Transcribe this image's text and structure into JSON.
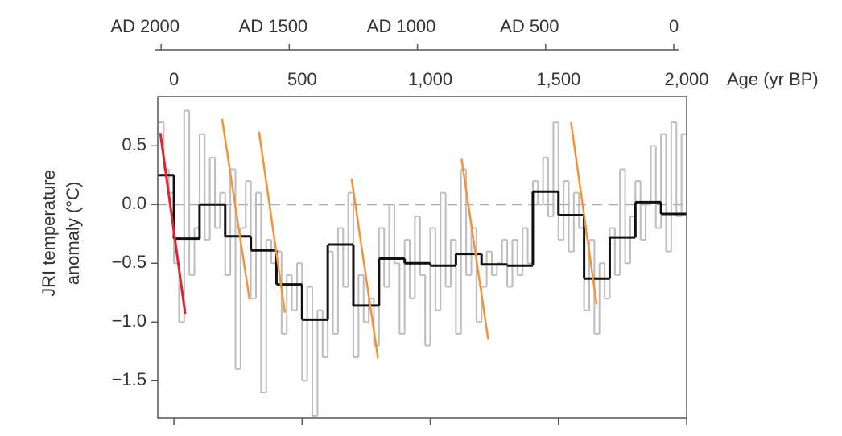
{
  "chart_data": {
    "type": "line",
    "ylabel": [
      "JRI temperature",
      "anomaly (°C)"
    ],
    "xlabel": "Age (yr BP)",
    "xlim": [
      -63,
      2000
    ],
    "xticks": [
      0,
      500,
      {
        "value": 1000,
        "label": "1,000"
      },
      {
        "value": 1500,
        "label": "1,500"
      },
      {
        "value": 2000,
        "label": "2,000"
      }
    ],
    "x2lim": [
      2013,
      -50
    ],
    "x2ticks": [
      {
        "value": 2000,
        "label": "AD 2000"
      },
      {
        "value": 1500,
        "label": "AD 1500"
      },
      {
        "value": 1000,
        "label": "AD 1000"
      },
      {
        "value": 500,
        "label": "AD 500"
      },
      0
    ],
    "ylim": [
      -1.82,
      0.92
    ],
    "yticks": [
      0.5,
      {
        "value": 0,
        "label": "0.0"
      },
      {
        "value": -0.5,
        "label": "−0.5"
      },
      {
        "value": -1,
        "label": "−1.0"
      },
      {
        "value": -1.5,
        "label": "−1.5"
      }
    ],
    "reference_line": 0,
    "series": [
      {
        "style": "step",
        "color": "#bdbdbd",
        "width": 2,
        "x": [
          -60,
          -40,
          -20,
          0,
          20,
          40,
          60,
          80,
          100,
          120,
          140,
          160,
          180,
          200,
          220,
          240,
          260,
          280,
          300,
          320,
          340,
          360,
          380,
          400,
          420,
          440,
          460,
          480,
          500,
          520,
          540,
          560,
          580,
          600,
          620,
          640,
          660,
          680,
          700,
          720,
          740,
          760,
          780,
          800,
          820,
          840,
          860,
          880,
          900,
          920,
          940,
          960,
          980,
          1000,
          1020,
          1040,
          1060,
          1080,
          1100,
          1120,
          1140,
          1160,
          1180,
          1200,
          1220,
          1240,
          1260,
          1280,
          1300,
          1320,
          1340,
          1360,
          1380,
          1400,
          1420,
          1440,
          1460,
          1480,
          1500,
          1520,
          1540,
          1560,
          1580,
          1600,
          1620,
          1640,
          1660,
          1680,
          1700,
          1720,
          1740,
          1760,
          1780,
          1800,
          1820,
          1840,
          1860,
          1880,
          1900,
          1920,
          1940,
          1960,
          1980
        ],
        "values": [
          0.7,
          0.3,
          0.1,
          -0.5,
          -1.0,
          0.8,
          -0.6,
          -0.2,
          0.6,
          -0.3,
          0.4,
          -0.2,
          0.1,
          -0.6,
          0.3,
          -1.4,
          -0.2,
          0.2,
          -0.8,
          0.1,
          -1.6,
          -0.3,
          -0.5,
          -0.4,
          -1.1,
          -0.6,
          -0.9,
          -0.5,
          -1.5,
          -0.7,
          -1.8,
          -0.9,
          -1.3,
          -0.4,
          -1.1,
          -0.2,
          -0.7,
          0.1,
          -1.3,
          -0.6,
          -1.0,
          -0.8,
          -1.2,
          -0.2,
          -0.7,
          0.0,
          -0.5,
          -1.1,
          -0.3,
          -0.8,
          -0.1,
          -0.6,
          -1.2,
          -0.2,
          -0.9,
          0.1,
          -0.7,
          -0.3,
          -1.1,
          0.3,
          -0.6,
          -0.2,
          -1.0,
          -0.7,
          -0.4,
          -0.6,
          -0.5,
          -0.3,
          -0.7,
          -0.3,
          -0.6,
          -0.2,
          -0.5,
          0.2,
          0.0,
          0.4,
          -0.1,
          0.7,
          -0.3,
          0.2,
          -0.4,
          0.1,
          -0.2,
          -0.9,
          -0.3,
          -1.1,
          -0.5,
          -0.8,
          -0.2,
          -0.6,
          0.3,
          -0.5,
          -0.1,
          0.2,
          -0.3,
          0.0,
          0.5,
          -0.2,
          0.6,
          -0.4,
          0.7,
          -0.1,
          0.6
        ]
      },
      {
        "style": "step",
        "color": "#111111",
        "width": 3,
        "x": [
          -63,
          0,
          100,
          200,
          300,
          400,
          500,
          600,
          700,
          800,
          900,
          1000,
          1100,
          1200,
          1300,
          1400,
          1500,
          1600,
          1700,
          1800,
          1900
        ],
        "values": [
          0.25,
          -0.29,
          0.0,
          -0.27,
          -0.39,
          -0.68,
          -0.98,
          -0.34,
          -0.86,
          -0.46,
          -0.5,
          -0.52,
          -0.42,
          -0.51,
          -0.52,
          0.11,
          -0.09,
          -0.63,
          -0.28,
          0.02,
          -0.08
        ]
      },
      {
        "style": "line",
        "color": "#d9262e",
        "width": 3,
        "x": [
          -53,
          44
        ],
        "values": [
          0.61,
          -0.93
        ]
      },
      {
        "style": "line",
        "color": "#f0943c",
        "width": 2.5,
        "x": [
          188,
          295
        ],
        "values": [
          0.73,
          -0.81
        ]
      },
      {
        "style": "line",
        "color": "#f0943c",
        "width": 2.5,
        "x": [
          332,
          433
        ],
        "values": [
          0.62,
          -0.92
        ]
      },
      {
        "style": "line",
        "color": "#f0943c",
        "width": 2.5,
        "x": [
          693,
          796
        ],
        "values": [
          0.22,
          -1.31
        ]
      },
      {
        "style": "line",
        "color": "#f0943c",
        "width": 2.5,
        "x": [
          1122,
          1226
        ],
        "values": [
          0.39,
          -1.15
        ]
      },
      {
        "style": "line",
        "color": "#f0943c",
        "width": 2.5,
        "x": [
          1549,
          1649
        ],
        "values": [
          0.7,
          -0.85
        ]
      }
    ]
  }
}
